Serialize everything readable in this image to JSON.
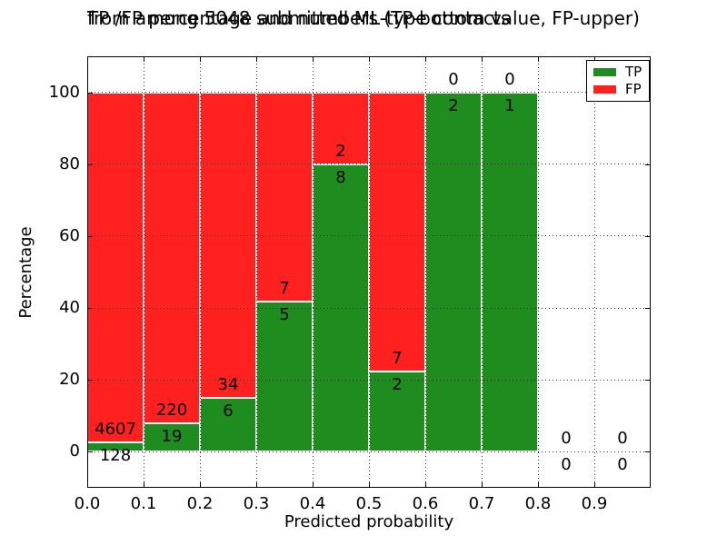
{
  "figure": {
    "title_line1": "TP /FP percentage and numbers (TP-bottom value, FP-upper)",
    "title_line2": "from among 5048 submitted ML-type contacts",
    "xlabel": "Predicted probability",
    "ylabel": "Percentage"
  },
  "legend": {
    "position": "upper right",
    "items": [
      {
        "label": "TP",
        "color": "#1e8c1e"
      },
      {
        "label": "FP",
        "color": "#ff2020"
      }
    ]
  },
  "chart_data": {
    "type": "bar",
    "stacked": true,
    "normalized_to_percent": true,
    "title": "TP /FP percentage and numbers (TP-bottom value, FP-upper) from among 5048 submitted ML-type contacts",
    "xlabel": "Predicted probability",
    "ylabel": "Percentage",
    "total_submitted_contacts": 5048,
    "grid": true,
    "xlim": [
      0.0,
      1.0
    ],
    "ylim": [
      -10,
      110
    ],
    "xticks": [
      "0.0",
      "0.1",
      "0.2",
      "0.3",
      "0.4",
      "0.5",
      "0.6",
      "0.7",
      "0.8",
      "0.9"
    ],
    "yticks": [
      0,
      20,
      40,
      60,
      80,
      100
    ],
    "colors": {
      "tp": "#1e8c1e",
      "fp": "#ff2020",
      "bar_edge": "#ffffff",
      "text": "#000000"
    },
    "bins": [
      {
        "range": [
          0.0,
          0.1
        ],
        "tp": 128,
        "fp": 4607,
        "tp_percent": 2.7
      },
      {
        "range": [
          0.1,
          0.2
        ],
        "tp": 19,
        "fp": 220,
        "tp_percent": 7.9
      },
      {
        "range": [
          0.2,
          0.3
        ],
        "tp": 6,
        "fp": 34,
        "tp_percent": 15.0
      },
      {
        "range": [
          0.3,
          0.4
        ],
        "tp": 5,
        "fp": 7,
        "tp_percent": 41.7
      },
      {
        "range": [
          0.4,
          0.5
        ],
        "tp": 8,
        "fp": 2,
        "tp_percent": 80.0
      },
      {
        "range": [
          0.5,
          0.6
        ],
        "tp": 2,
        "fp": 7,
        "tp_percent": 22.2
      },
      {
        "range": [
          0.6,
          0.7
        ],
        "tp": 2,
        "fp": 0,
        "tp_percent": 100.0
      },
      {
        "range": [
          0.7,
          0.8
        ],
        "tp": 1,
        "fp": 0,
        "tp_percent": 100.0
      },
      {
        "range": [
          0.8,
          0.9
        ],
        "tp": 0,
        "fp": 0,
        "tp_percent": null
      },
      {
        "range": [
          0.9,
          1.0
        ],
        "tp": 0,
        "fp": 0,
        "tp_percent": null
      }
    ]
  }
}
